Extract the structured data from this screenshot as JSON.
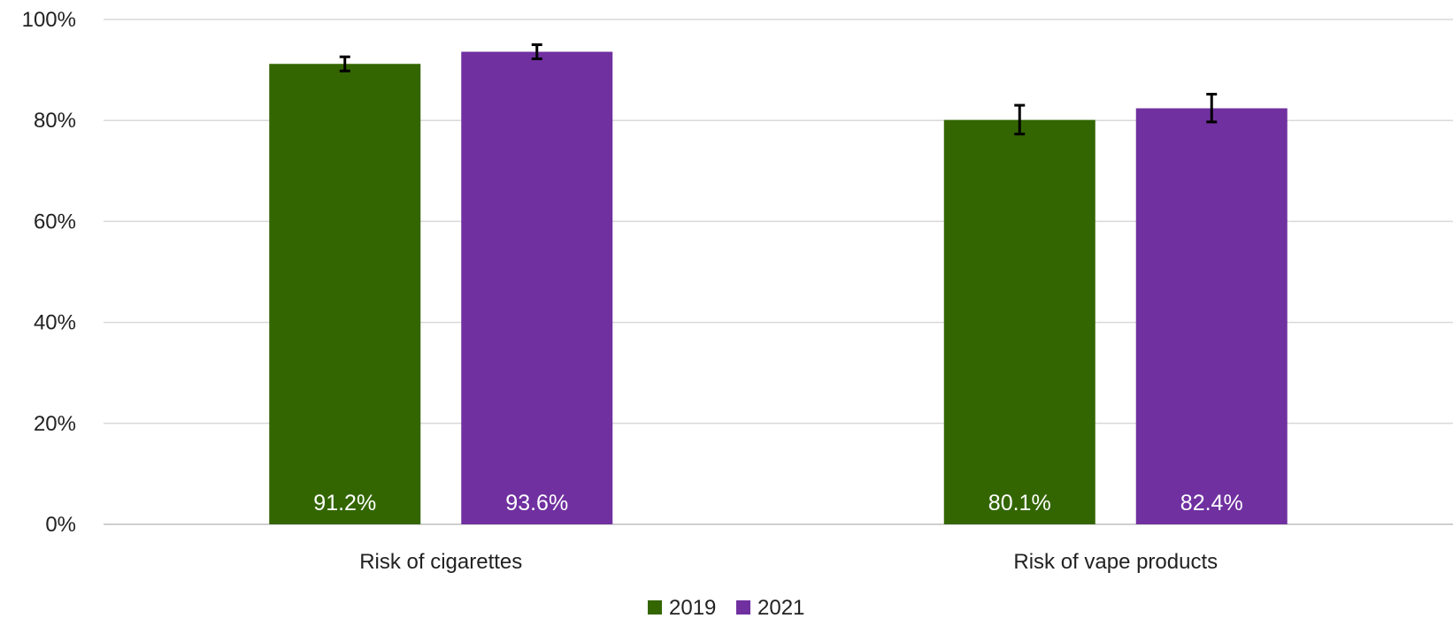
{
  "chart_data": {
    "type": "bar",
    "categories": [
      "Risk of cigarettes",
      "Risk of vape products"
    ],
    "series": [
      {
        "name": "2019",
        "color": "#336600",
        "values": [
          91.2,
          80.1
        ],
        "labels": [
          "91.2%",
          "80.1%"
        ],
        "error_low": [
          89.8,
          77.3
        ],
        "error_high": [
          92.6,
          83.0
        ]
      },
      {
        "name": "2021",
        "color": "#7030A0",
        "values": [
          93.6,
          82.4
        ],
        "labels": [
          "93.6%",
          "82.4%"
        ],
        "error_low": [
          92.2,
          79.7
        ],
        "error_high": [
          95.0,
          85.2
        ]
      }
    ],
    "ylim": [
      0,
      100
    ],
    "yticks": [
      0,
      20,
      40,
      60,
      80,
      100
    ],
    "ytick_labels": [
      "0%",
      "20%",
      "40%",
      "60%",
      "80%",
      "100%"
    ],
    "grid": true,
    "legend_position": "bottom-center",
    "title": "",
    "xlabel": "",
    "ylabel": ""
  }
}
